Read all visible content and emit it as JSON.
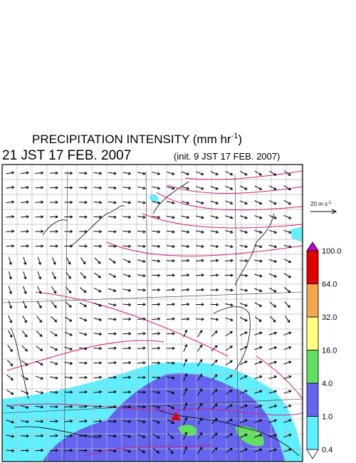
{
  "header": {
    "title": "PRECIPITATION INTENSITY (mm hr",
    "title_exponent": "-1",
    "title_close": ")",
    "valid_time": "21 JST 17 FEB. 2007",
    "init_time": "(init. 9 JST 17 FEB. 2007)"
  },
  "vector_scale": {
    "label": "20 m s",
    "exponent": "-1"
  },
  "colorbar": {
    "levels": [
      "0.4",
      "1.0",
      "4.0",
      "16.0",
      "32.0",
      "64.0",
      "100.0"
    ],
    "colors": [
      "#5ff0ff",
      "#6464f0",
      "#5fe05f",
      "#ffff80",
      "#f5a54b",
      "#e00000"
    ],
    "over_color": "#c000d0",
    "under_color": "#ffffff"
  }
}
